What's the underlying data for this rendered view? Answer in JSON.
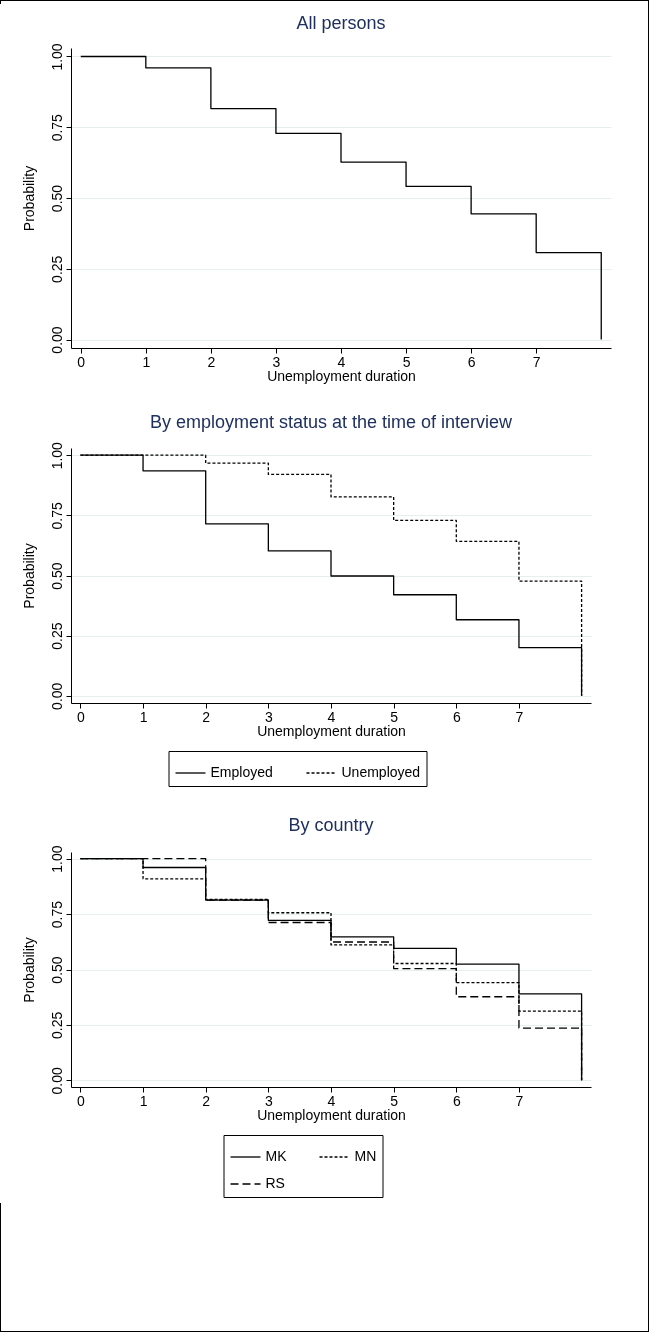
{
  "chart_data": [
    {
      "type": "step",
      "title": "All persons",
      "xlabel": "Unemployment duration",
      "ylabel": "Probability",
      "x": [
        0,
        1,
        2,
        3,
        4,
        5,
        6,
        7,
        8
      ],
      "series": [
        {
          "color": "#000000",
          "line_style": "solid",
          "values": [
            1.0,
            0.96,
            0.816,
            0.728,
            0.627,
            0.541,
            0.444,
            0.307,
            0
          ]
        }
      ],
      "xlim": [
        -0.15,
        8.15
      ],
      "ylim": [
        -0.03,
        1.03
      ],
      "xticks": [
        0,
        1,
        2,
        3,
        4,
        5,
        6,
        7
      ],
      "yticks": [
        {
          "value": 0,
          "label": "0.00"
        },
        {
          "value": 0.25,
          "label": "0.25"
        },
        {
          "value": 0.5,
          "label": "0.50"
        },
        {
          "value": 0.75,
          "label": "0.75"
        },
        {
          "value": 1,
          "label": "1.00"
        }
      ],
      "grid": "y"
    },
    {
      "type": "step",
      "title": "By employment status at the time of interview",
      "xlabel": "Unemployment duration",
      "ylabel": "Probability",
      "x": [
        0,
        1,
        2,
        3,
        4,
        5,
        6,
        7,
        8
      ],
      "series": [
        {
          "name": "Employed",
          "color": "#000000",
          "line_style": "solid",
          "values": [
            1.0,
            0.935,
            0.715,
            0.602,
            0.498,
            0.42,
            0.316,
            0.2,
            0
          ]
        },
        {
          "name": "Unemployed",
          "color": "#000000",
          "line_style": "dotted",
          "values": [
            1.0,
            1.0,
            0.967,
            0.92,
            0.827,
            0.729,
            0.642,
            0.477,
            0
          ]
        }
      ],
      "xlim": [
        -0.15,
        8.15
      ],
      "ylim": [
        -0.03,
        1.03
      ],
      "xticks": [
        0,
        1,
        2,
        3,
        4,
        5,
        6,
        7
      ],
      "yticks": [
        {
          "value": 0,
          "label": "0.00"
        },
        {
          "value": 0.25,
          "label": "0.25"
        },
        {
          "value": 0.5,
          "label": "0.50"
        },
        {
          "value": 0.75,
          "label": "0.75"
        },
        {
          "value": 1,
          "label": "1.00"
        }
      ],
      "grid": "y",
      "legend": "bottom"
    },
    {
      "type": "step",
      "title": "By country",
      "xlabel": "Unemployment duration",
      "ylabel": "Probability",
      "x": [
        0,
        1,
        2,
        3,
        4,
        5,
        6,
        7,
        8
      ],
      "series": [
        {
          "name": "MK",
          "color": "#000000",
          "line_style": "solid",
          "values": [
            1.0,
            0.96,
            0.813,
            0.722,
            0.647,
            0.595,
            0.524,
            0.39,
            0
          ]
        },
        {
          "name": "MN",
          "color": "#000000",
          "line_style": "dotted",
          "values": [
            1.0,
            0.909,
            0.816,
            0.756,
            0.611,
            0.527,
            0.441,
            0.312,
            0
          ]
        },
        {
          "name": "RS",
          "color": "#000000",
          "line_style": "dashed",
          "values": [
            1.0,
            1.0,
            0.813,
            0.712,
            0.624,
            0.504,
            0.377,
            0.236,
            0
          ]
        }
      ],
      "xlim": [
        -0.15,
        8.15
      ],
      "ylim": [
        -0.03,
        1.03
      ],
      "xticks": [
        0,
        1,
        2,
        3,
        4,
        5,
        6,
        7
      ],
      "yticks": [
        {
          "value": 0,
          "label": "0.00"
        },
        {
          "value": 0.25,
          "label": "0.25"
        },
        {
          "value": 0.5,
          "label": "0.50"
        },
        {
          "value": 0.75,
          "label": "0.75"
        },
        {
          "value": 1,
          "label": "1.00"
        }
      ],
      "grid": "y",
      "legend": "bottom"
    }
  ]
}
